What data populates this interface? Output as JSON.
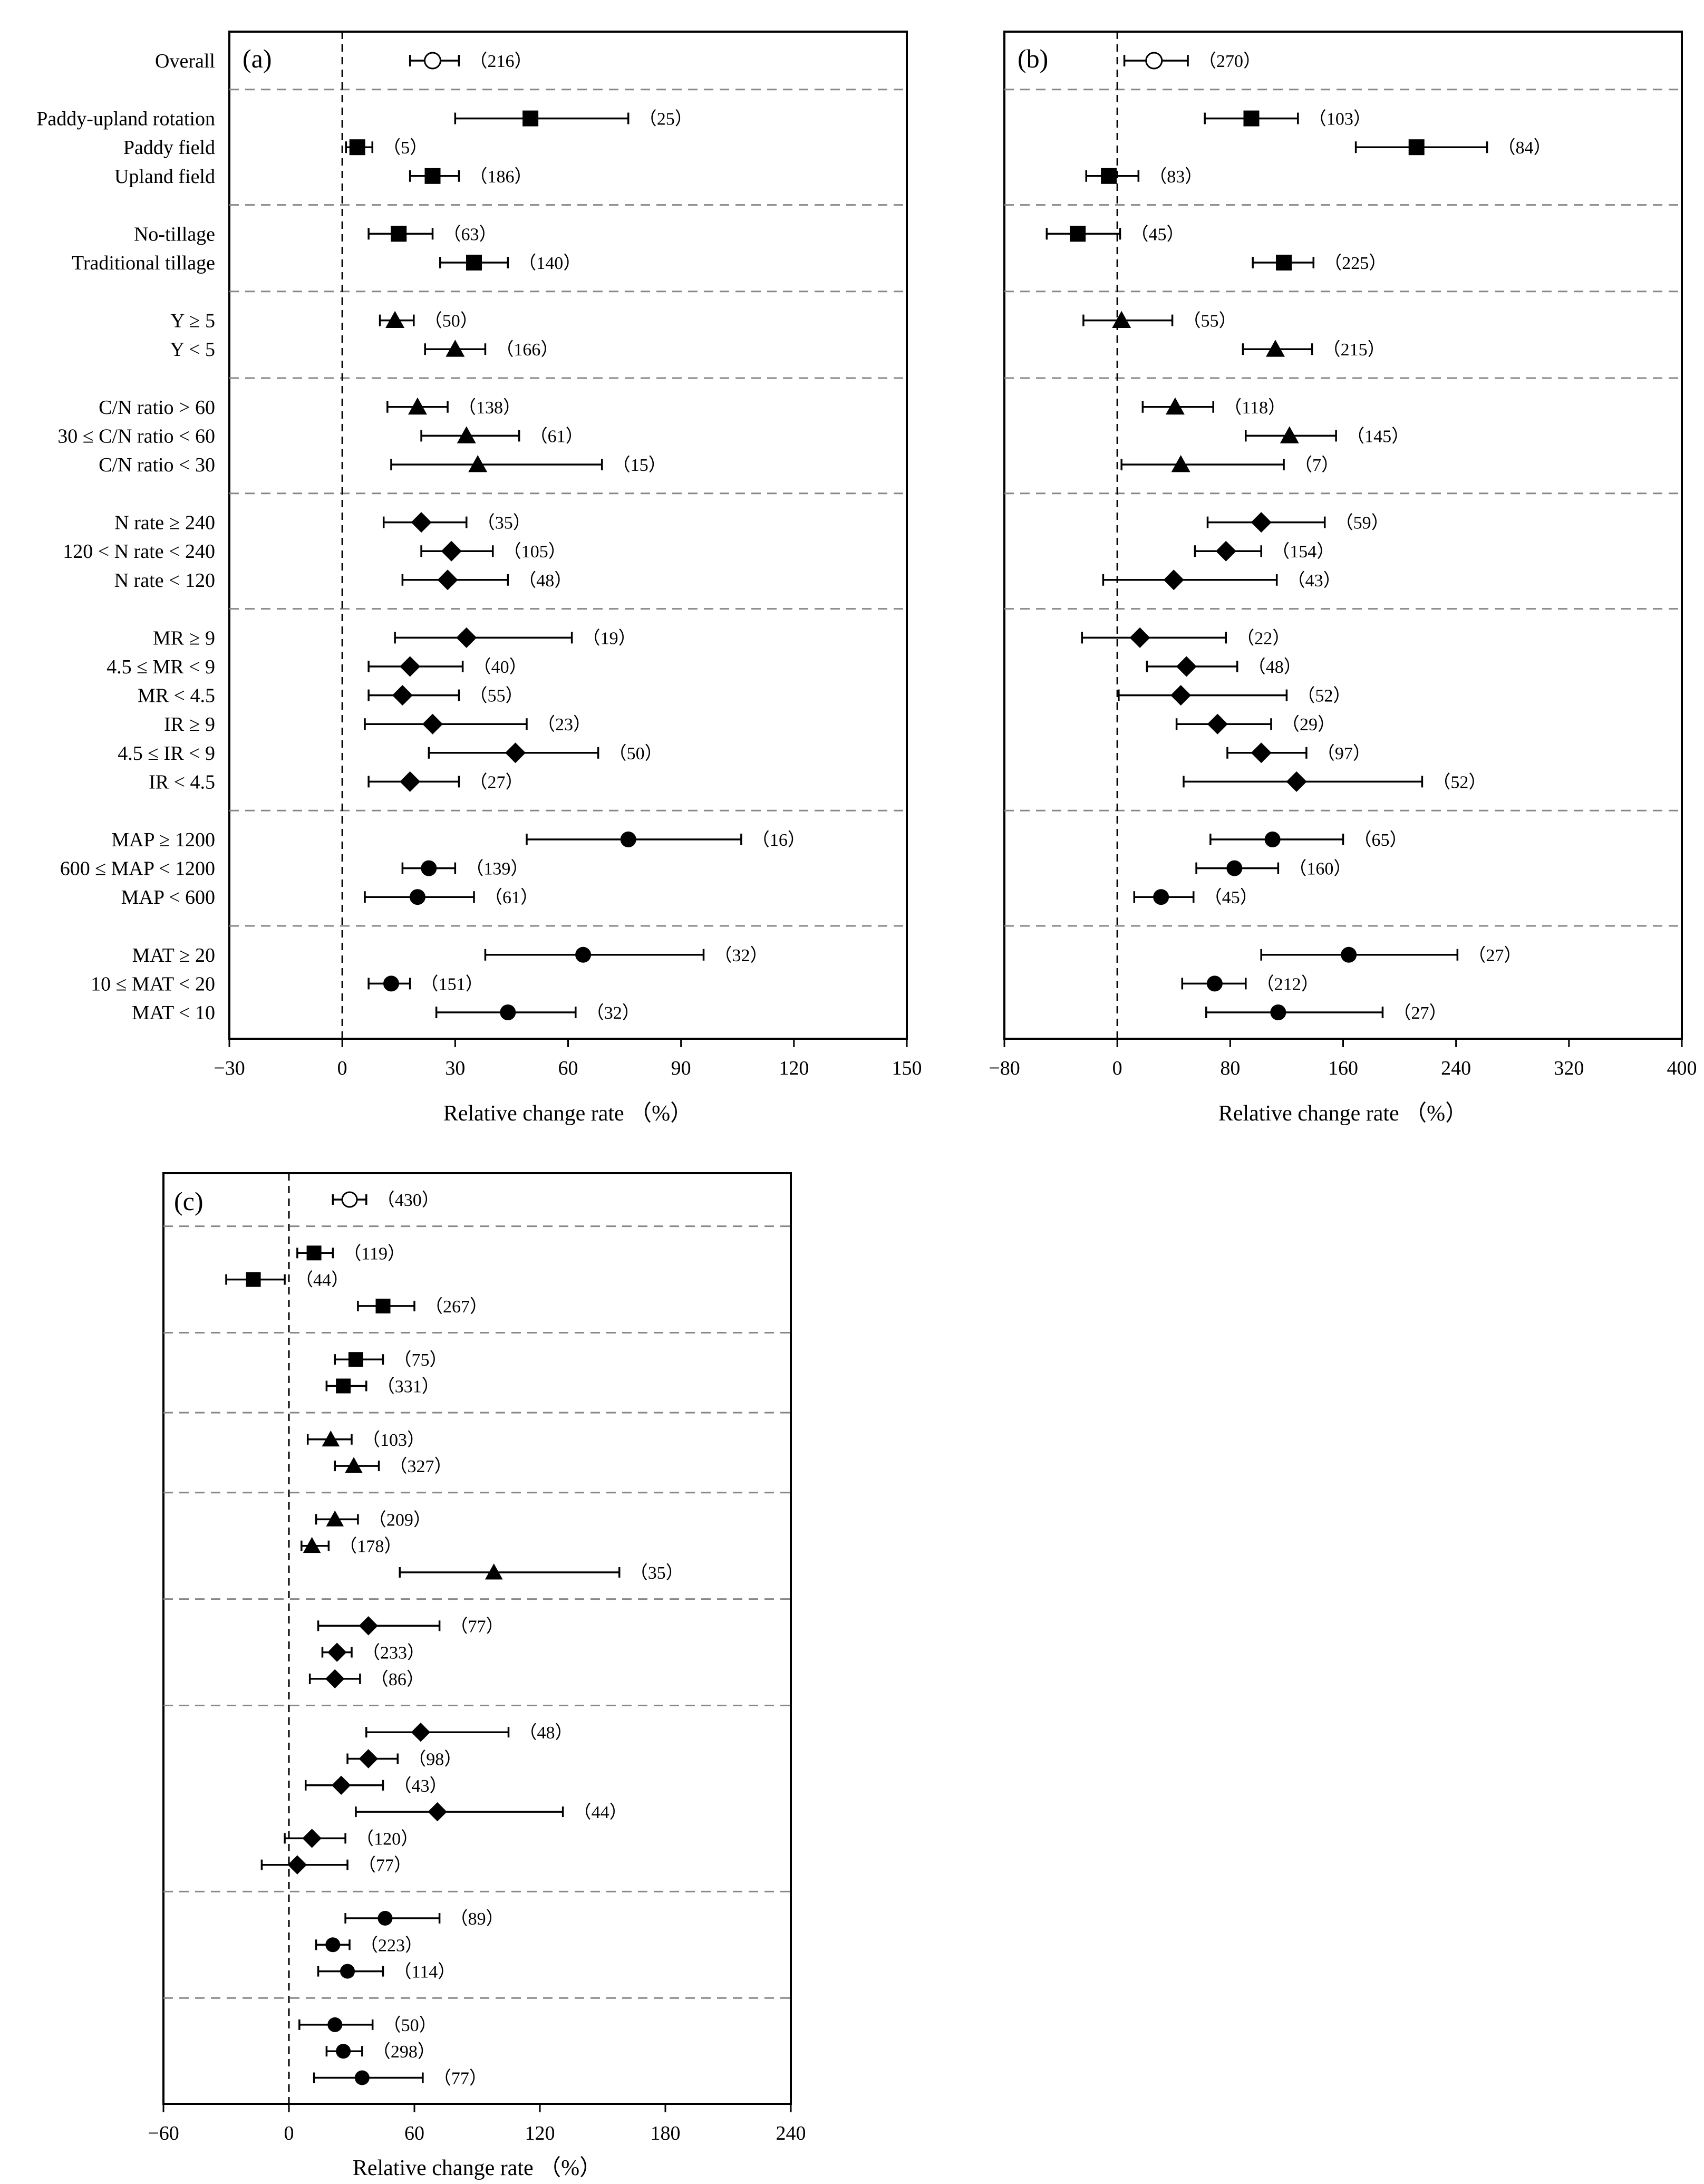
{
  "row_labels": [
    "Overall",
    "Paddy-upland rotation",
    "Paddy field",
    "Upland field",
    "No-tillage",
    "Traditional tillage",
    "Y ≥ 5",
    "Y < 5",
    "C/N ratio > 60",
    "30 ≤ C/N ratio < 60",
    "C/N ratio < 30",
    "N rate ≥ 240",
    "120 < N rate < 240",
    "N rate < 120",
    "MR ≥ 9",
    "4.5 ≤ MR < 9",
    "MR < 4.5",
    "IR ≥ 9",
    "4.5 ≤ IR < 9",
    "IR < 4.5",
    "MAP ≥ 1200",
    "600 ≤ MAP < 1200",
    "MAP < 600",
    "MAT ≥ 20",
    "10 ≤ MAT < 20",
    "MAT < 10"
  ],
  "groups": [
    1,
    3,
    2,
    2,
    3,
    3,
    6,
    3,
    3
  ],
  "markers": [
    "open-circle",
    "square",
    "square",
    "square",
    "square",
    "square",
    "triangle",
    "triangle",
    "triangle",
    "triangle",
    "triangle",
    "diamond",
    "diamond",
    "diamond",
    "diamond",
    "diamond",
    "diamond",
    "diamond",
    "diamond",
    "diamond",
    "circle",
    "circle",
    "circle",
    "circle",
    "circle",
    "circle"
  ],
  "chart_data": [
    {
      "type": "forest",
      "panel": "(a)",
      "xlabel": "Relative change rate （%）",
      "xlim": [
        -30,
        150
      ],
      "xticks": [
        -30,
        0,
        30,
        60,
        90,
        120,
        150
      ],
      "xtick_labels": [
        "−30",
        "0",
        "30",
        "60",
        "90",
        "120",
        "150"
      ],
      "mean": [
        24,
        50,
        4,
        24,
        15,
        35,
        14,
        30,
        20,
        33,
        36,
        21,
        29,
        28,
        33,
        18,
        16,
        24,
        46,
        18,
        76,
        23,
        20,
        64,
        13,
        44
      ],
      "ci_low": [
        18,
        30,
        1,
        18,
        7,
        26,
        10,
        22,
        12,
        21,
        13,
        11,
        21,
        16,
        14,
        7,
        7,
        6,
        23,
        7,
        49,
        16,
        6,
        38,
        7,
        25
      ],
      "ci_high": [
        31,
        76,
        8,
        31,
        24,
        44,
        19,
        38,
        28,
        47,
        69,
        33,
        40,
        44,
        61,
        32,
        31,
        49,
        68,
        31,
        106,
        30,
        35,
        96,
        18,
        62
      ],
      "n": [
        "216",
        "25",
        "5",
        "186",
        "63",
        "140",
        "50",
        "166",
        "138",
        "61",
        "15",
        "35",
        "105",
        "48",
        "19",
        "40",
        "55",
        "23",
        "50",
        "27",
        "16",
        "139",
        "61",
        "32",
        "151",
        "32"
      ]
    },
    {
      "type": "forest",
      "panel": "(b)",
      "xlabel": "Relative change rate （%）",
      "xlim": [
        -80,
        400
      ],
      "xticks": [
        -80,
        0,
        80,
        160,
        240,
        320,
        400
      ],
      "xtick_labels": [
        "−80",
        "0",
        "80",
        "160",
        "240",
        "320",
        "400"
      ],
      "mean": [
        26,
        95,
        212,
        -6,
        -28,
        118,
        3,
        112,
        41,
        122,
        45,
        102,
        77,
        40,
        16,
        49,
        45,
        71,
        102,
        127,
        110,
        83,
        31,
        164,
        69,
        114
      ],
      "ci_low": [
        5,
        62,
        169,
        -22,
        -50,
        96,
        -24,
        89,
        18,
        91,
        3,
        64,
        55,
        -10,
        -25,
        21,
        1,
        42,
        78,
        47,
        66,
        56,
        12,
        102,
        46,
        63
      ],
      "ci_high": [
        50,
        128,
        262,
        15,
        2,
        139,
        39,
        138,
        68,
        155,
        118,
        147,
        102,
        113,
        77,
        85,
        120,
        109,
        134,
        216,
        160,
        114,
        54,
        241,
        91,
        188
      ],
      "n": [
        "270",
        "103",
        "84",
        "83",
        "45",
        "225",
        "55",
        "215",
        "118",
        "145",
        "7",
        "59",
        "154",
        "43",
        "22",
        "48",
        "52",
        "29",
        "97",
        "52",
        "65",
        "160",
        "45",
        "27",
        "212",
        "27"
      ]
    },
    {
      "type": "forest",
      "panel": "(c)",
      "xlabel": "Relative change rate （%）",
      "xlim": [
        -60,
        240
      ],
      "xticks": [
        -60,
        0,
        60,
        120,
        180,
        240
      ],
      "xtick_labels": [
        "−60",
        "0",
        "60",
        "120",
        "180",
        "240"
      ],
      "mean": [
        29,
        12,
        -17,
        45,
        32,
        26,
        20,
        31,
        22,
        11,
        98,
        38,
        23,
        22,
        63,
        38,
        25,
        71,
        11,
        4,
        46,
        21,
        28,
        22,
        26,
        35
      ],
      "ci_low": [
        21,
        4,
        -30,
        33,
        22,
        18,
        9,
        22,
        13,
        6,
        53,
        14,
        16,
        10,
        37,
        28,
        8,
        32,
        -2,
        -13,
        27,
        13,
        14,
        5,
        18,
        12
      ],
      "ci_high": [
        37,
        21,
        -2,
        60,
        45,
        37,
        30,
        43,
        33,
        19,
        158,
        72,
        30,
        34,
        105,
        52,
        45,
        131,
        27,
        28,
        72,
        29,
        45,
        40,
        35,
        64
      ],
      "n": [
        "430",
        "119",
        "44",
        "267",
        "75",
        "331",
        "103",
        "327",
        "209",
        "178",
        "35",
        "77",
        "233",
        "86",
        "48",
        "98",
        "43",
        "44",
        "120",
        "77",
        "89",
        "223",
        "114",
        "50",
        "298",
        "77"
      ]
    }
  ]
}
